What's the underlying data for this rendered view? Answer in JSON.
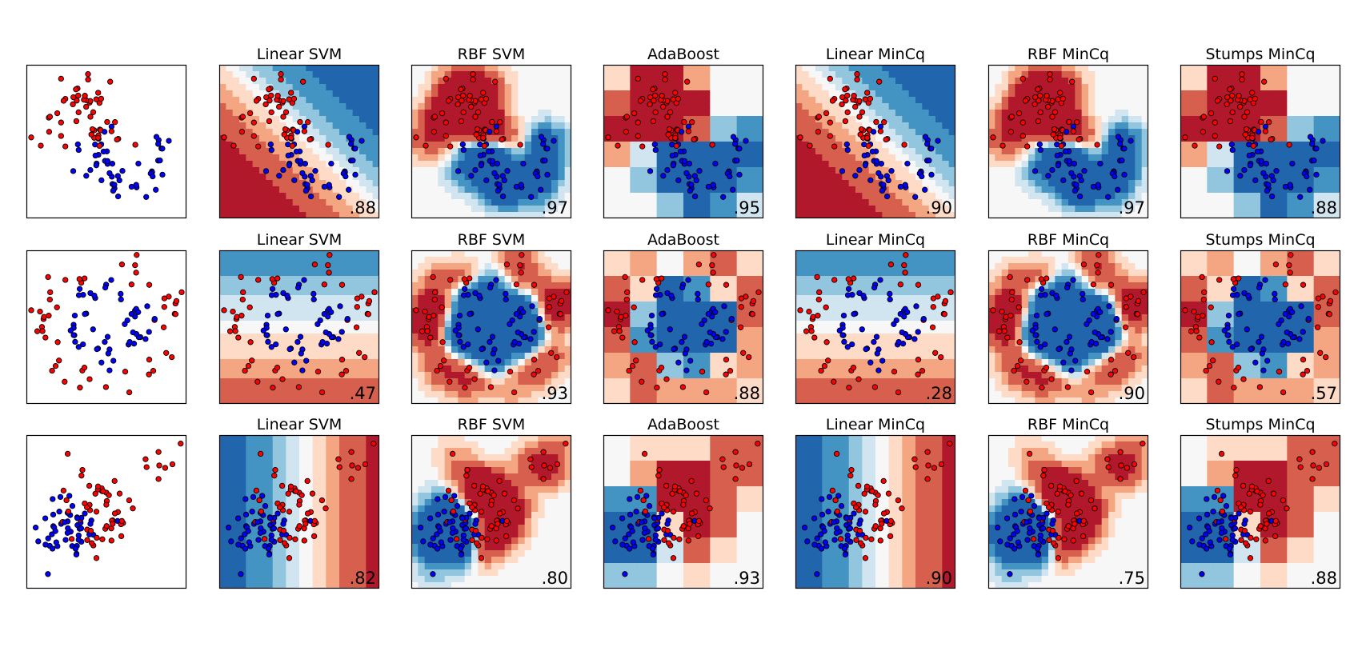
{
  "figure_title": "",
  "colors": {
    "class_red": "#ff0000",
    "class_blue": "#0000ff",
    "map_red_dark": "#b2182b",
    "map_red": "#d6604d",
    "map_red_mid": "#f4a582",
    "map_red_light": "#fddbc7",
    "map_neutral": "#f7f7f7",
    "map_blue_light": "#d1e5f0",
    "map_blue_mid": "#92c5de",
    "map_blue": "#4393c3",
    "map_blue_dark": "#2166ac"
  },
  "chart_data": [
    {
      "type": "scatter",
      "dataset": "moons",
      "row": 0,
      "title": "",
      "score": "",
      "classifier": "input-data"
    },
    {
      "type": "heatmap",
      "dataset": "moons",
      "row": 0,
      "title": "Linear SVM",
      "score": ".88",
      "classifier": "linear"
    },
    {
      "type": "heatmap",
      "dataset": "moons",
      "row": 0,
      "title": "RBF SVM",
      "score": ".97",
      "classifier": "rbf"
    },
    {
      "type": "heatmap",
      "dataset": "moons",
      "row": 0,
      "title": "AdaBoost",
      "score": ".95",
      "classifier": "stumps"
    },
    {
      "type": "heatmap",
      "dataset": "moons",
      "row": 0,
      "title": "Linear MinCq",
      "score": ".90",
      "classifier": "linear"
    },
    {
      "type": "heatmap",
      "dataset": "moons",
      "row": 0,
      "title": "RBF MinCq",
      "score": ".97",
      "classifier": "rbf"
    },
    {
      "type": "heatmap",
      "dataset": "moons",
      "row": 0,
      "title": "Stumps MinCq",
      "score": ".88",
      "classifier": "stumps"
    },
    {
      "type": "scatter",
      "dataset": "circles",
      "row": 1,
      "title": "",
      "score": "",
      "classifier": "input-data"
    },
    {
      "type": "heatmap",
      "dataset": "circles",
      "row": 1,
      "title": "Linear SVM",
      "score": ".47",
      "classifier": "linear"
    },
    {
      "type": "heatmap",
      "dataset": "circles",
      "row": 1,
      "title": "RBF SVM",
      "score": ".93",
      "classifier": "rbf"
    },
    {
      "type": "heatmap",
      "dataset": "circles",
      "row": 1,
      "title": "AdaBoost",
      "score": ".88",
      "classifier": "stumps"
    },
    {
      "type": "heatmap",
      "dataset": "circles",
      "row": 1,
      "title": "Linear MinCq",
      "score": ".28",
      "classifier": "linear"
    },
    {
      "type": "heatmap",
      "dataset": "circles",
      "row": 1,
      "title": "RBF MinCq",
      "score": ".90",
      "classifier": "rbf"
    },
    {
      "type": "heatmap",
      "dataset": "circles",
      "row": 1,
      "title": "Stumps MinCq",
      "score": ".57",
      "classifier": "stumps"
    },
    {
      "type": "scatter",
      "dataset": "linear",
      "row": 2,
      "title": "",
      "score": "",
      "classifier": "input-data"
    },
    {
      "type": "heatmap",
      "dataset": "linear",
      "row": 2,
      "title": "Linear SVM",
      "score": ".82",
      "classifier": "linear"
    },
    {
      "type": "heatmap",
      "dataset": "linear",
      "row": 2,
      "title": "RBF SVM",
      "score": ".80",
      "classifier": "rbf"
    },
    {
      "type": "heatmap",
      "dataset": "linear",
      "row": 2,
      "title": "AdaBoost",
      "score": ".93",
      "classifier": "stumps"
    },
    {
      "type": "heatmap",
      "dataset": "linear",
      "row": 2,
      "title": "Linear MinCq",
      "score": ".90",
      "classifier": "linear"
    },
    {
      "type": "heatmap",
      "dataset": "linear",
      "row": 2,
      "title": "RBF MinCq",
      "score": ".75",
      "classifier": "rbf"
    },
    {
      "type": "heatmap",
      "dataset": "linear",
      "row": 2,
      "title": "Stumps MinCq",
      "score": ".88",
      "classifier": "stumps"
    }
  ]
}
